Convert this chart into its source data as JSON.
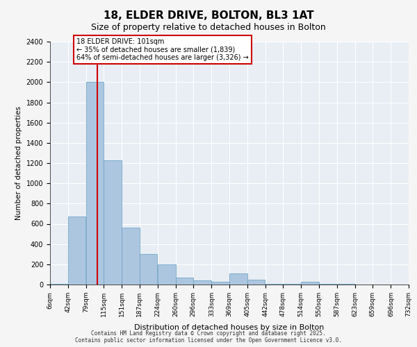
{
  "title_line1": "18, ELDER DRIVE, BOLTON, BL3 1AT",
  "title_line2": "Size of property relative to detached houses in Bolton",
  "xlabel": "Distribution of detached houses by size in Bolton",
  "ylabel": "Number of detached properties",
  "background_color": "#e8eef4",
  "bar_color": "#adc6e0",
  "bar_edge_color": "#5f9ec0",
  "grid_color": "#ffffff",
  "vline_value": 101,
  "vline_color": "#cc0000",
  "annotation_text": "18 ELDER DRIVE: 101sqm\n← 35% of detached houses are smaller (1,839)\n64% of semi-detached houses are larger (3,326) →",
  "annotation_box_color": "#ffffff",
  "annotation_box_edge": "#cc0000",
  "footer_text": "Contains HM Land Registry data © Crown copyright and database right 2025.\nContains public sector information licensed under the Open Government Licence v3.0.",
  "bin_edges": [
    6,
    42,
    79,
    115,
    151,
    187,
    224,
    260,
    296,
    333,
    369,
    405,
    442,
    478,
    514,
    550,
    587,
    623,
    659,
    696,
    732
  ],
  "bin_labels": [
    "6sqm",
    "42sqm",
    "79sqm",
    "115sqm",
    "151sqm",
    "187sqm",
    "224sqm",
    "260sqm",
    "296sqm",
    "333sqm",
    "369sqm",
    "405sqm",
    "442sqm",
    "478sqm",
    "514sqm",
    "550sqm",
    "587sqm",
    "623sqm",
    "659sqm",
    "696sqm",
    "732sqm"
  ],
  "counts": [
    10,
    670,
    2000,
    1230,
    560,
    300,
    200,
    70,
    40,
    30,
    110,
    50,
    10,
    5,
    30,
    10,
    5,
    2,
    1,
    1
  ],
  "ylim": [
    0,
    2400
  ],
  "yticks": [
    0,
    200,
    400,
    600,
    800,
    1000,
    1200,
    1400,
    1600,
    1800,
    2000,
    2200,
    2400
  ]
}
